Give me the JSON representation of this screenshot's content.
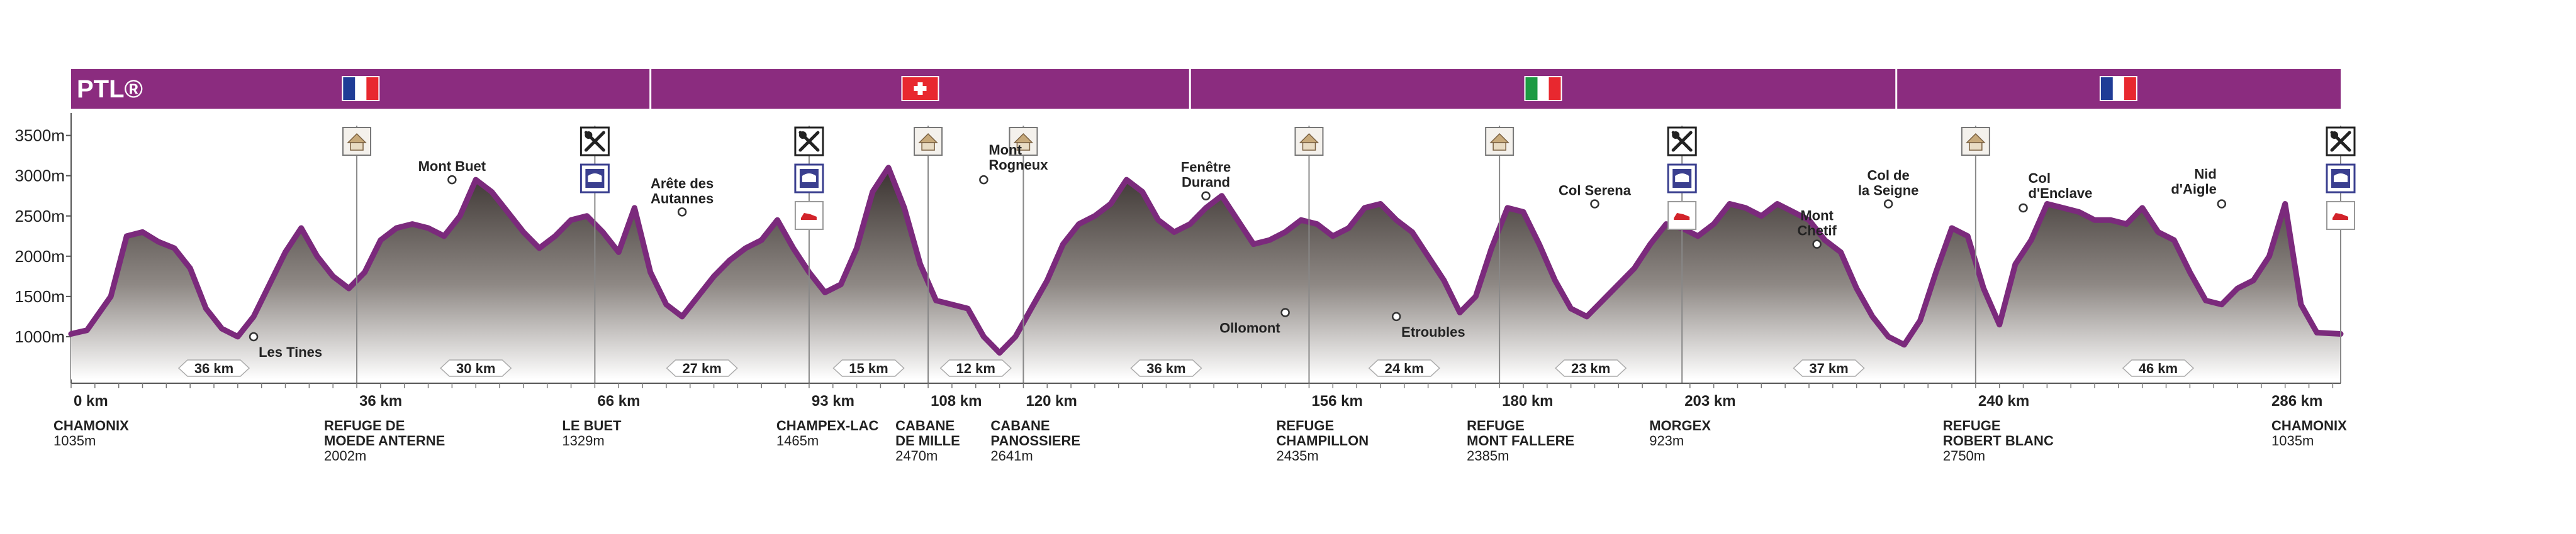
{
  "chart_data": {
    "type": "area",
    "title": "PTL®",
    "ylim": [
      500,
      3700
    ],
    "xlim": [
      0,
      286
    ],
    "y_ticks": [
      {
        "value": 1000,
        "label": "1000m"
      },
      {
        "value": 1500,
        "label": "1500m"
      },
      {
        "value": 2000,
        "label": "2000m"
      },
      {
        "value": 2500,
        "label": "2500m"
      },
      {
        "value": 3000,
        "label": "3000m"
      },
      {
        "value": 3500,
        "label": "3500m"
      }
    ],
    "colors": {
      "band": "#8b2c7f",
      "line": "#7b2a7c",
      "fill_top": "#3a3330",
      "fill_bottom": "#ffffff",
      "km": "#7b2a7c"
    },
    "countries": [
      {
        "flag": "france",
        "from": 0,
        "to": 73
      },
      {
        "flag": "switzerland",
        "from": 73,
        "to": 141
      },
      {
        "flag": "italy",
        "from": 141,
        "to": 230
      },
      {
        "flag": "france",
        "from": 230,
        "to": 286
      }
    ],
    "profile": {
      "x": [
        0,
        2,
        5,
        7,
        9,
        11,
        13,
        15,
        17,
        19,
        21,
        23,
        25,
        27,
        29,
        31,
        33,
        35,
        37,
        39,
        41,
        43,
        45,
        47,
        49,
        51,
        53,
        55,
        57,
        59,
        61,
        63,
        65,
        67,
        69,
        71,
        73,
        75,
        77,
        79,
        81,
        83,
        85,
        87,
        89,
        91,
        93,
        95,
        97,
        99,
        101,
        103,
        105,
        107,
        109,
        111,
        113,
        115,
        117,
        119,
        121,
        123,
        125,
        127,
        129,
        131,
        133,
        135,
        137,
        139,
        141,
        143,
        145,
        147,
        149,
        151,
        153,
        155,
        157,
        159,
        161,
        163,
        165,
        167,
        169,
        171,
        173,
        175,
        177,
        179,
        181,
        183,
        185,
        187,
        189,
        191,
        193,
        195,
        197,
        199,
        201,
        203,
        205,
        207,
        209,
        211,
        213,
        215,
        217,
        219,
        221,
        223,
        225,
        227,
        229,
        231,
        233,
        235,
        237,
        239,
        241,
        243,
        245,
        247,
        249,
        251,
        253,
        255,
        257,
        259,
        261,
        263,
        265,
        267,
        269,
        271,
        273,
        275,
        277,
        279,
        281,
        283,
        286
      ],
      "y": [
        1035,
        1080,
        1500,
        2250,
        2300,
        2180,
        2100,
        1850,
        1350,
        1100,
        1000,
        1250,
        1650,
        2050,
        2350,
        2000,
        1750,
        1600,
        1800,
        2200,
        2350,
        2400,
        2350,
        2250,
        2500,
        2950,
        2800,
        2550,
        2300,
        2100,
        2250,
        2450,
        2500,
        2300,
        2050,
        2600,
        1800,
        1400,
        1250,
        1500,
        1750,
        1950,
        2100,
        2200,
        2450,
        2100,
        1800,
        1550,
        1650,
        2100,
        2800,
        3100,
        2600,
        1900,
        1450,
        1400,
        1350,
        1000,
        800,
        1000,
        1350,
        1700,
        2150,
        2400,
        2500,
        2650,
        2950,
        2800,
        2450,
        2300,
        2400,
        2600,
        2750,
        2450,
        2150,
        2200,
        2300,
        2450,
        2400,
        2250,
        2350,
        2600,
        2650,
        2450,
        2300,
        2000,
        1700,
        1300,
        1500,
        2100,
        2600,
        2550,
        2150,
        1700,
        1350,
        1250,
        1450,
        1650,
        1850,
        2150,
        2400,
        2350,
        2250,
        2400,
        2650,
        2600,
        2500,
        2650,
        2550,
        2450,
        2200,
        2050,
        1600,
        1250,
        1000,
        900,
        1200,
        1800,
        2350,
        2250,
        1600,
        1150,
        1900,
        2200,
        2650,
        2600,
        2550,
        2450,
        2450,
        2400,
        2600,
        2300,
        2200,
        1800,
        1450,
        1400,
        1600,
        1700,
        2000,
        2650,
        1400,
        1050,
        1035
      ]
    },
    "segments": [
      {
        "label": "36 km",
        "from": 0,
        "to": 36
      },
      {
        "label": "30 km",
        "from": 36,
        "to": 66
      },
      {
        "label": "27 km",
        "from": 66,
        "to": 93
      },
      {
        "label": "15 km",
        "from": 93,
        "to": 108
      },
      {
        "label": "12 km",
        "from": 108,
        "to": 120
      },
      {
        "label": "36 km",
        "from": 120,
        "to": 156
      },
      {
        "label": "24 km",
        "from": 156,
        "to": 180
      },
      {
        "label": "23 km",
        "from": 180,
        "to": 203
      },
      {
        "label": "37 km",
        "from": 203,
        "to": 240
      },
      {
        "label": "46 km",
        "from": 240,
        "to": 286
      }
    ],
    "stops": [
      {
        "km": 0,
        "km_label": "0 km",
        "name": [
          "CHAMONIX"
        ],
        "alt": "1035m",
        "icons": []
      },
      {
        "km": 36,
        "km_label": "36 km",
        "name": [
          "REFUGE DE",
          "MOEDE ANTERNE"
        ],
        "alt": "2002m",
        "icons": [
          "hut"
        ]
      },
      {
        "km": 66,
        "km_label": "66 km",
        "name": [
          "LE BUET"
        ],
        "alt": "1329m",
        "icons": [
          "food",
          "bed"
        ]
      },
      {
        "km": 93,
        "km_label": "93 km",
        "name": [
          "CHAMPEX-LAC"
        ],
        "alt": "1465m",
        "icons": [
          "food",
          "bed",
          "shoe"
        ]
      },
      {
        "km": 108,
        "km_label": "108 km",
        "name": [
          "CABANE",
          "DE MILLE"
        ],
        "alt": "2470m",
        "icons": [
          "hut"
        ]
      },
      {
        "km": 120,
        "km_label": "120 km",
        "name": [
          "CABANE",
          "PANOSSIERE"
        ],
        "alt": "2641m",
        "icons": [
          "hut"
        ]
      },
      {
        "km": 156,
        "km_label": "156 km",
        "name": [
          "REFUGE",
          "CHAMPILLON"
        ],
        "alt": "2435m",
        "icons": [
          "hut"
        ]
      },
      {
        "km": 180,
        "km_label": "180 km",
        "name": [
          "REFUGE",
          "MONT FALLERE"
        ],
        "alt": "2385m",
        "icons": [
          "hut"
        ]
      },
      {
        "km": 203,
        "km_label": "203 km",
        "name": [
          "MORGEX"
        ],
        "alt": "923m",
        "icons": [
          "food",
          "bed",
          "shoe"
        ]
      },
      {
        "km": 240,
        "km_label": "240 km",
        "name": [
          "REFUGE",
          "ROBERT BLANC"
        ],
        "alt": "2750m",
        "icons": [
          "hut"
        ]
      },
      {
        "km": 286,
        "km_label": "286 km",
        "name": [
          "CHAMONIX"
        ],
        "alt": "1035m",
        "icons": [
          "food",
          "bed",
          "shoe"
        ]
      }
    ],
    "peaks": [
      {
        "km": 23,
        "y": 1000,
        "lines": [
          "Les Tines"
        ],
        "pos": "below-right"
      },
      {
        "km": 48,
        "y": 2950,
        "lines": [
          "Mont Buet"
        ],
        "pos": "above"
      },
      {
        "km": 77,
        "y": 2550,
        "lines": [
          "Arête des",
          "Autannes"
        ],
        "pos": "above"
      },
      {
        "km": 115,
        "y": 2950,
        "lines": [
          "Mont",
          "Rogneux"
        ],
        "pos": "above-right"
      },
      {
        "km": 143,
        "y": 2750,
        "lines": [
          "Fenêtre",
          "Durand"
        ],
        "pos": "above"
      },
      {
        "km": 153,
        "y": 1300,
        "lines": [
          "Ollomont"
        ],
        "pos": "below-left"
      },
      {
        "km": 167,
        "y": 1250,
        "lines": [
          "Etroubles"
        ],
        "pos": "below-right"
      },
      {
        "km": 192,
        "y": 2650,
        "lines": [
          "Col Serena"
        ],
        "pos": "above"
      },
      {
        "km": 220,
        "y": 2150,
        "lines": [
          "Mont",
          "Chetif"
        ],
        "pos": "above"
      },
      {
        "km": 229,
        "y": 2650,
        "lines": [
          "Col de",
          "la Seigne"
        ],
        "pos": "above"
      },
      {
        "km": 246,
        "y": 2600,
        "lines": [
          "Col",
          "d'Enclave"
        ],
        "pos": "above-right"
      },
      {
        "km": 271,
        "y": 2650,
        "lines": [
          "Nid",
          "d'Aigle"
        ],
        "pos": "above-left"
      }
    ]
  }
}
